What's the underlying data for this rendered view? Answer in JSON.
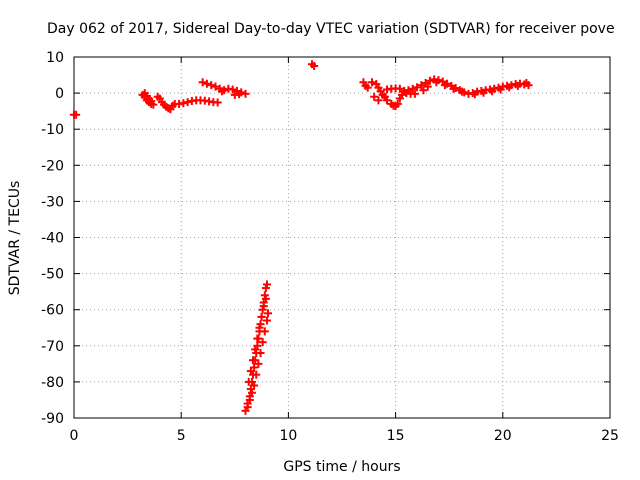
{
  "chart_data": {
    "type": "scatter",
    "title": "Day 062 of 2017, Sidereal Day-to-day VTEC variation (SDTVAR) for receiver pove",
    "xlabel": "GPS time / hours",
    "ylabel": "SDTVAR / TECUs",
    "xlim": [
      0,
      25
    ],
    "ylim": [
      -90,
      10
    ],
    "xticks": [
      "0",
      "5",
      "10",
      "15",
      "20",
      "25"
    ],
    "yticks": [
      "10",
      "0",
      "-10",
      "-20",
      "-30",
      "-40",
      "-50",
      "-60",
      "-70",
      "-80",
      "-90"
    ],
    "grid": true,
    "marker_color": "#ff0000",
    "marker": "plus",
    "series": [
      {
        "name": "SDTVAR",
        "points": [
          [
            0.0,
            -6
          ],
          [
            0.1,
            -6
          ],
          [
            3.2,
            -0.5
          ],
          [
            3.3,
            -1
          ],
          [
            3.4,
            -2
          ],
          [
            3.5,
            -2.5
          ],
          [
            3.6,
            -3
          ],
          [
            3.7,
            -3.2
          ],
          [
            3.3,
            0
          ],
          [
            3.4,
            -0.8
          ],
          [
            3.5,
            -1.6
          ],
          [
            3.6,
            -2.2
          ],
          [
            3.9,
            -1
          ],
          [
            4.0,
            -1.5
          ],
          [
            4.1,
            -2.5
          ],
          [
            4.2,
            -3.2
          ],
          [
            4.3,
            -3.8
          ],
          [
            4.4,
            -4.2
          ],
          [
            4.5,
            -4.5
          ],
          [
            4.6,
            -3.5
          ],
          [
            4.7,
            -3
          ],
          [
            4.9,
            -3
          ],
          [
            5.1,
            -2.8
          ],
          [
            5.3,
            -2.5
          ],
          [
            5.5,
            -2.2
          ],
          [
            5.7,
            -2
          ],
          [
            5.9,
            -2
          ],
          [
            6.1,
            -2.1
          ],
          [
            6.3,
            -2.3
          ],
          [
            6.5,
            -2.5
          ],
          [
            6.7,
            -2.6
          ],
          [
            6.0,
            3
          ],
          [
            6.2,
            2.6
          ],
          [
            6.4,
            2.2
          ],
          [
            6.6,
            1.8
          ],
          [
            6.8,
            1.2
          ],
          [
            6.9,
            0.5
          ],
          [
            7.0,
            0.8
          ],
          [
            7.2,
            1.2
          ],
          [
            7.4,
            1.0
          ],
          [
            7.6,
            0.6
          ],
          [
            7.8,
            0.2
          ],
          [
            8.0,
            -0.2
          ],
          [
            7.5,
            -0.5
          ],
          [
            7.7,
            -0.3
          ],
          [
            8.0,
            -88
          ],
          [
            8.1,
            -86
          ],
          [
            8.2,
            -84
          ],
          [
            8.25,
            -82
          ],
          [
            8.3,
            -80
          ],
          [
            8.35,
            -78
          ],
          [
            8.4,
            -76
          ],
          [
            8.45,
            -74
          ],
          [
            8.5,
            -72
          ],
          [
            8.55,
            -70
          ],
          [
            8.6,
            -68
          ],
          [
            8.65,
            -66
          ],
          [
            8.7,
            -64
          ],
          [
            8.75,
            -62
          ],
          [
            8.8,
            -60
          ],
          [
            8.85,
            -58
          ],
          [
            8.9,
            -56
          ],
          [
            8.95,
            -54
          ],
          [
            9.0,
            -53
          ],
          [
            8.1,
            -87
          ],
          [
            8.2,
            -85
          ],
          [
            8.3,
            -83
          ],
          [
            8.4,
            -81
          ],
          [
            8.5,
            -78
          ],
          [
            8.6,
            -75
          ],
          [
            8.7,
            -72
          ],
          [
            8.8,
            -69
          ],
          [
            8.9,
            -66
          ],
          [
            9.0,
            -63
          ],
          [
            9.05,
            -61
          ],
          [
            8.15,
            -80
          ],
          [
            8.25,
            -77
          ],
          [
            8.35,
            -74
          ],
          [
            8.45,
            -71
          ],
          [
            8.55,
            -68
          ],
          [
            8.65,
            -65
          ],
          [
            8.75,
            -62
          ],
          [
            8.85,
            -59
          ],
          [
            8.95,
            -57
          ],
          [
            11.1,
            8
          ],
          [
            11.2,
            7.5
          ],
          [
            13.5,
            3
          ],
          [
            13.6,
            2
          ],
          [
            13.7,
            1.5
          ],
          [
            13.9,
            3
          ],
          [
            14.1,
            2.5
          ],
          [
            14.2,
            1.5
          ],
          [
            14.3,
            0.5
          ],
          [
            14.4,
            -0.5
          ],
          [
            14.5,
            -1
          ],
          [
            14.6,
            -2
          ],
          [
            14.8,
            -3
          ],
          [
            14.9,
            -3.5
          ],
          [
            15.0,
            -3.6
          ],
          [
            15.1,
            -3
          ],
          [
            14.0,
            -1
          ],
          [
            14.2,
            -2
          ],
          [
            15.2,
            -1.5
          ],
          [
            15.3,
            -0.5
          ],
          [
            15.5,
            0
          ],
          [
            15.7,
            -0.2
          ],
          [
            15.9,
            -0.2
          ],
          [
            14.6,
            1
          ],
          [
            14.8,
            1.2
          ],
          [
            15.0,
            1.3
          ],
          [
            15.2,
            1.2
          ],
          [
            15.4,
            0.6
          ],
          [
            15.6,
            0.8
          ],
          [
            15.8,
            1.2
          ],
          [
            16.0,
            1.6
          ],
          [
            16.2,
            2.2
          ],
          [
            16.4,
            2.8
          ],
          [
            16.6,
            3.4
          ],
          [
            16.8,
            3.8
          ],
          [
            17.0,
            3.6
          ],
          [
            17.2,
            3.2
          ],
          [
            17.4,
            2.6
          ],
          [
            17.6,
            2.0
          ],
          [
            17.8,
            1.4
          ],
          [
            18.0,
            0.8
          ],
          [
            18.2,
            0.2
          ],
          [
            18.4,
            -0.2
          ],
          [
            18.6,
            0
          ],
          [
            16.3,
            0.8
          ],
          [
            16.5,
            1.8
          ],
          [
            16.9,
            3.0
          ],
          [
            17.3,
            2.2
          ],
          [
            17.7,
            1.2
          ],
          [
            18.1,
            0.4
          ],
          [
            18.8,
            0.4
          ],
          [
            19.0,
            0.6
          ],
          [
            19.2,
            0.8
          ],
          [
            19.4,
            1.0
          ],
          [
            19.6,
            1.2
          ],
          [
            19.8,
            1.5
          ],
          [
            20.0,
            1.8
          ],
          [
            20.2,
            2.0
          ],
          [
            20.4,
            2.2
          ],
          [
            20.6,
            2.5
          ],
          [
            20.8,
            2.6
          ],
          [
            21.0,
            2.4
          ],
          [
            21.2,
            2.2
          ],
          [
            18.7,
            -0.3
          ],
          [
            19.1,
            0.1
          ],
          [
            19.5,
            0.5
          ],
          [
            19.9,
            1.0
          ],
          [
            20.3,
            1.6
          ],
          [
            20.7,
            2.0
          ],
          [
            21.1,
            2.8
          ]
        ]
      }
    ]
  }
}
